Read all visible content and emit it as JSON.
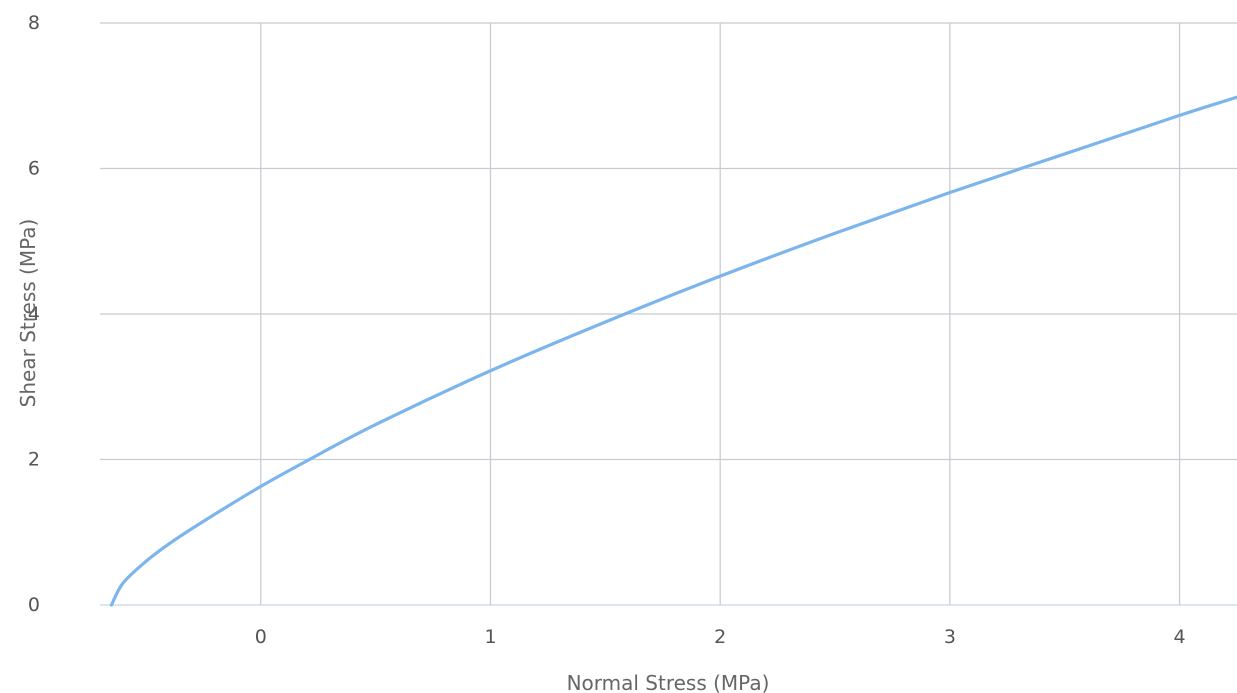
{
  "chart_data": {
    "type": "line",
    "title": "",
    "xlabel": "Normal Stress (MPa)",
    "ylabel": "Shear Stress (MPa)",
    "xlim": [
      -0.7,
      4.25
    ],
    "ylim": [
      0,
      8
    ],
    "x_ticks": [
      "0",
      "1",
      "2",
      "3",
      "4"
    ],
    "y_ticks": [
      "0",
      "2",
      "4",
      "6",
      "8"
    ],
    "grid": true,
    "legend": "none",
    "colors": {
      "series": "#7cb5ec",
      "grid": "#c8ccd1",
      "text": "#555555"
    },
    "series": [
      {
        "x": [
          -0.65,
          -0.6,
          -0.5,
          -0.4,
          -0.25,
          0,
          0.2,
          0.5,
          1,
          1.5,
          2,
          2.5,
          3,
          3.5,
          4,
          4.25
        ],
        "values": [
          0,
          0.3,
          0.6,
          0.84,
          1.15,
          1.63,
          1.98,
          2.48,
          3.22,
          3.89,
          4.52,
          5.11,
          5.67,
          6.2,
          6.73,
          6.98
        ]
      }
    ]
  }
}
